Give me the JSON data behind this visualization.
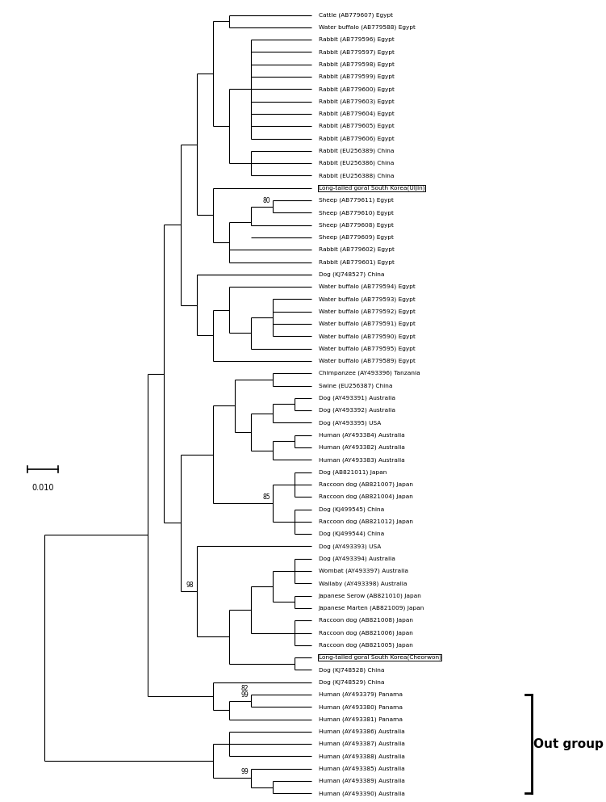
{
  "taxa": [
    "Cattle (AB779607) Egypt",
    "Water buffalo (AB779588) Egypt",
    "Rabbit (AB779596) Egypt",
    "Rabbit (AB779597) Egypt",
    "Rabbit (AB779598) Egypt",
    "Rabbit (AB779599) Egypt",
    "Rabbit (AB779600) Egypt",
    "Rabbit (AB779603) Egypt",
    "Rabbit (AB779604) Egypt",
    "Rabbit (AB779605) Egypt",
    "Rabbit (AB779606) Egypt",
    "Rabbit (EU256389) China",
    "Rabbit (EU256386) China",
    "Rabbit (EU256388) China",
    "Long-tailed goral South Korea(Uljin)",
    "Sheep (AB779611) Egypt",
    "Sheep (AB779610) Egypt",
    "Sheep (AB779608) Egypt",
    "Sheep (AB779609) Egypt",
    "Rabbit (AB779602) Egypt",
    "Rabbit (AB779601) Egypt",
    "Dog (KJ748527) China",
    "Water buffalo (AB779594) Egypt",
    "Water buffalo (AB779593) Egypt",
    "Water buffalo (AB779592) Egypt",
    "Water buffalo (AB779591) Egypt",
    "Water buffalo (AB779590) Egypt",
    "Water buffalo (AB779595) Egypt",
    "Water buffalo (AB779589) Egypt",
    "Chimpanzee (AY493396) Tanzania",
    "Swine (EU256387) China",
    "Dog (AY493391) Australia",
    "Dog (AY493392) Australia",
    "Dog (AY493395) USA",
    "Human (AY493384) Australia",
    "Human (AY493382) Australia",
    "Human (AY493383) Australia",
    "Dog (AB821011) Japan",
    "Raccoon dog (AB821007) Japan",
    "Raccoon dog (AB821004) Japan",
    "Dog (KJ499545) China",
    "Raccoon dog (AB821012) Japan",
    "Dog (KJ499544) China",
    "Dog (AY493393) USA",
    "Dog (AY493394) Australia",
    "Wombat (AY493397) Australia",
    "Wallaby (AY493398) Australia",
    "Japanese Serow (AB821010) Japan",
    "Japanese Marten (AB821009) Japan",
    "Raccoon dog (AB821008) Japan",
    "Raccoon dog (AB821006) Japan",
    "Raccoon dog (AB821005) Japan",
    "Long-tailed goral South Korea(Cheorwon)",
    "Dog (KJ748528) China",
    "Dog (KJ748529) China",
    "Human (AY493379) Panama",
    "Human (AY493380) Panama",
    "Human (AY493381) Panama",
    "Human (AY493386) Australia",
    "Human (AY493387) Australia",
    "Human (AY493388) Australia",
    "Human (AY493385) Australia",
    "Human (AY493389) Australia",
    "Human (AY493390) Australia"
  ],
  "boxed_taxa_indices": [
    14,
    52
  ],
  "scale_bar_label": "0.010",
  "out_group_label": "Out group",
  "fig_width": 7.51,
  "fig_height": 9.93,
  "dpi": 100
}
